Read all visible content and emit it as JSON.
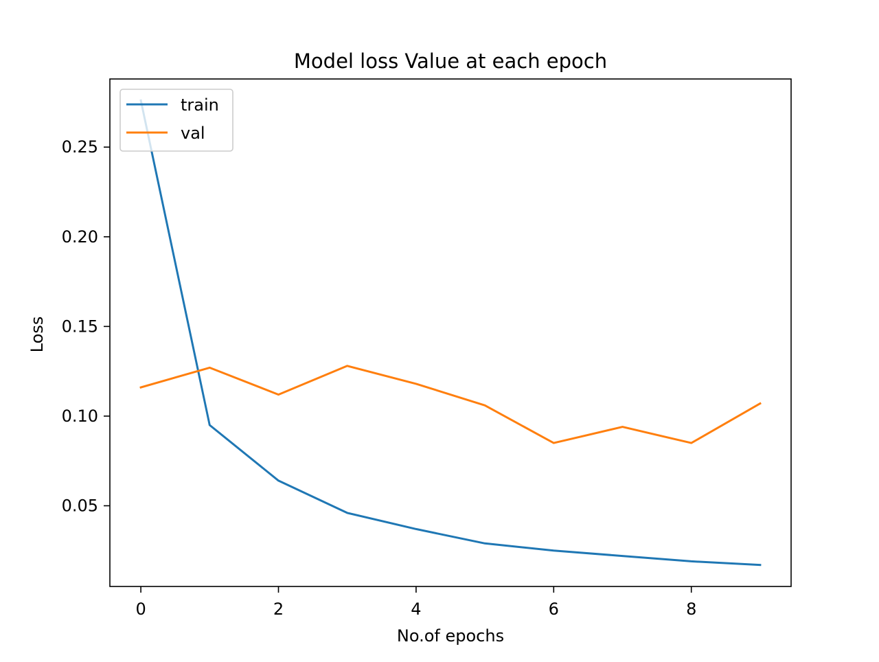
{
  "chart_data": {
    "type": "line",
    "title": "Model loss Value at each epoch",
    "xlabel": "No.of epochs",
    "ylabel": "Loss",
    "x": [
      0,
      1,
      2,
      3,
      4,
      5,
      6,
      7,
      8,
      9
    ],
    "xlim": [
      -0.45,
      9.45
    ],
    "ylim": [
      0.005,
      0.288
    ],
    "xticks": [
      0,
      2,
      4,
      6,
      8
    ],
    "yticks": [
      0.05,
      0.1,
      0.15,
      0.2,
      0.25
    ],
    "xtick_labels": [
      "0",
      "2",
      "4",
      "6",
      "8"
    ],
    "ytick_labels": [
      "0.05",
      "0.10",
      "0.15",
      "0.20",
      "0.25"
    ],
    "grid": false,
    "legend_position": "upper-left",
    "series": [
      {
        "name": "train",
        "color": "#1f77b4",
        "values": [
          0.276,
          0.095,
          0.064,
          0.046,
          0.037,
          0.029,
          0.025,
          0.022,
          0.019,
          0.017
        ]
      },
      {
        "name": "val",
        "color": "#ff7f0e",
        "values": [
          0.116,
          0.127,
          0.112,
          0.128,
          0.118,
          0.106,
          0.085,
          0.094,
          0.085,
          0.107
        ]
      }
    ]
  }
}
